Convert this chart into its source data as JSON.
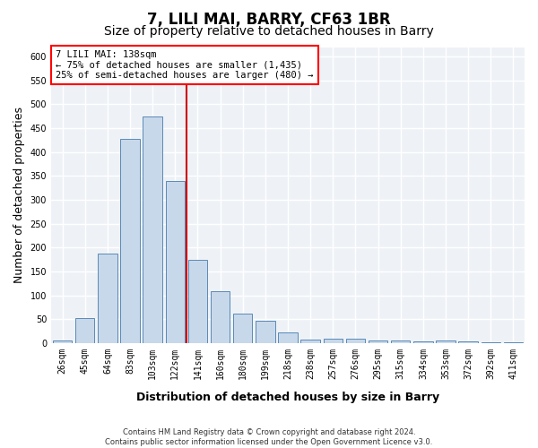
{
  "title": "7, LILI MAI, BARRY, CF63 1BR",
  "subtitle": "Size of property relative to detached houses in Barry",
  "xlabel": "Distribution of detached houses by size in Barry",
  "ylabel": "Number of detached properties",
  "bar_color": "#c8d8eb",
  "bar_edge_color": "#5a8ab5",
  "categories": [
    "26sqm",
    "45sqm",
    "64sqm",
    "83sqm",
    "103sqm",
    "122sqm",
    "141sqm",
    "160sqm",
    "180sqm",
    "199sqm",
    "218sqm",
    "238sqm",
    "257sqm",
    "276sqm",
    "295sqm",
    "315sqm",
    "334sqm",
    "353sqm",
    "372sqm",
    "392sqm",
    "411sqm"
  ],
  "values": [
    5,
    52,
    188,
    428,
    475,
    340,
    174,
    108,
    62,
    46,
    22,
    7,
    10,
    10,
    6,
    5,
    3,
    5,
    3,
    2,
    2
  ],
  "vline_position": 5.5,
  "vline_color": "#cc0000",
  "ylim_max": 620,
  "yticks": [
    0,
    50,
    100,
    150,
    200,
    250,
    300,
    350,
    400,
    450,
    500,
    550,
    600
  ],
  "annotation_title": "7 LILI MAI: 138sqm",
  "annotation_line1": "← 75% of detached houses are smaller (1,435)",
  "annotation_line2": "25% of semi-detached houses are larger (480) →",
  "footer_line1": "Contains HM Land Registry data © Crown copyright and database right 2024.",
  "footer_line2": "Contains public sector information licensed under the Open Government Licence v3.0.",
  "plot_bg_color": "#eef2f7",
  "grid_color": "#ffffff",
  "title_fontsize": 12,
  "subtitle_fontsize": 10,
  "ylabel_fontsize": 9,
  "xlabel_fontsize": 9,
  "tick_fontsize": 7,
  "annot_fontsize": 7.5,
  "footer_fontsize": 6
}
